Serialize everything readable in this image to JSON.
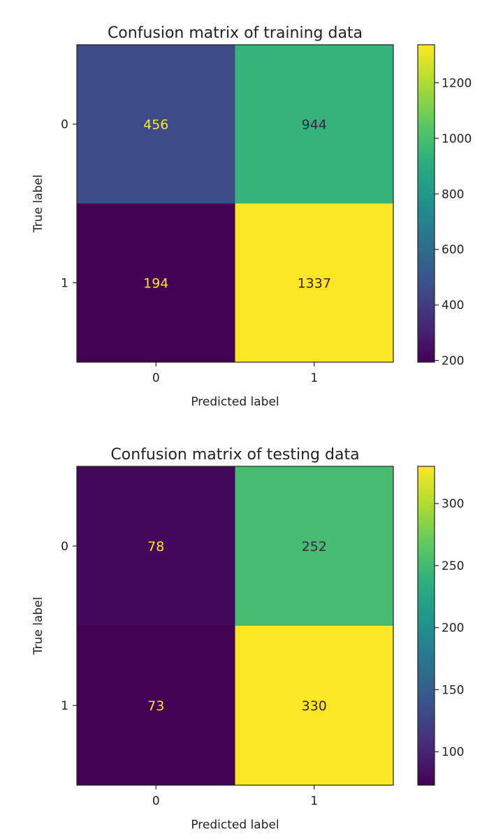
{
  "chart_data": [
    {
      "type": "heatmap",
      "title": "Confusion matrix of training data",
      "xlabel": "Predicted label",
      "ylabel": "True label",
      "x_categories": [
        "0",
        "1"
      ],
      "y_categories": [
        "0",
        "1"
      ],
      "values": [
        [
          456,
          944
        ],
        [
          194,
          1337
        ]
      ],
      "colormap": "viridis",
      "colorbar": {
        "min": 194,
        "max": 1337,
        "ticks": [
          200,
          400,
          600,
          800,
          1000,
          1200
        ]
      }
    },
    {
      "type": "heatmap",
      "title": "Confusion matrix of testing data",
      "xlabel": "Predicted label",
      "ylabel": "True label",
      "x_categories": [
        "0",
        "1"
      ],
      "y_categories": [
        "0",
        "1"
      ],
      "values": [
        [
          78,
          252
        ],
        [
          73,
          330
        ]
      ],
      "colormap": "viridis",
      "colorbar": {
        "min": 73,
        "max": 330,
        "ticks": [
          100,
          150,
          200,
          250,
          300
        ]
      }
    }
  ]
}
